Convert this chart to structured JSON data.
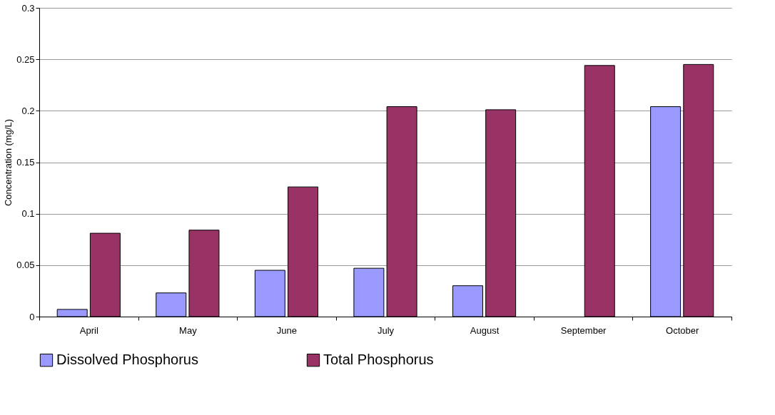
{
  "chart_data": {
    "type": "bar",
    "ylabel": "Concentration (mg/L)",
    "categories": [
      "April",
      "May",
      "June",
      "July",
      "August",
      "September",
      "October"
    ],
    "series": [
      {
        "name": "Dissolved Phosphorus",
        "color": "#9999ff",
        "values": [
          0.007,
          0.023,
          0.045,
          0.047,
          0.03,
          null,
          0.204
        ]
      },
      {
        "name": "Total Phosphorus",
        "color": "#993366",
        "values": [
          0.081,
          0.084,
          0.126,
          0.204,
          0.201,
          0.244,
          0.245
        ]
      }
    ],
    "ylim": [
      0,
      0.3
    ],
    "yticks": [
      0,
      0.05,
      0.1,
      0.15,
      0.2,
      0.25,
      0.3
    ],
    "grid": "y",
    "legend": "bottom"
  }
}
